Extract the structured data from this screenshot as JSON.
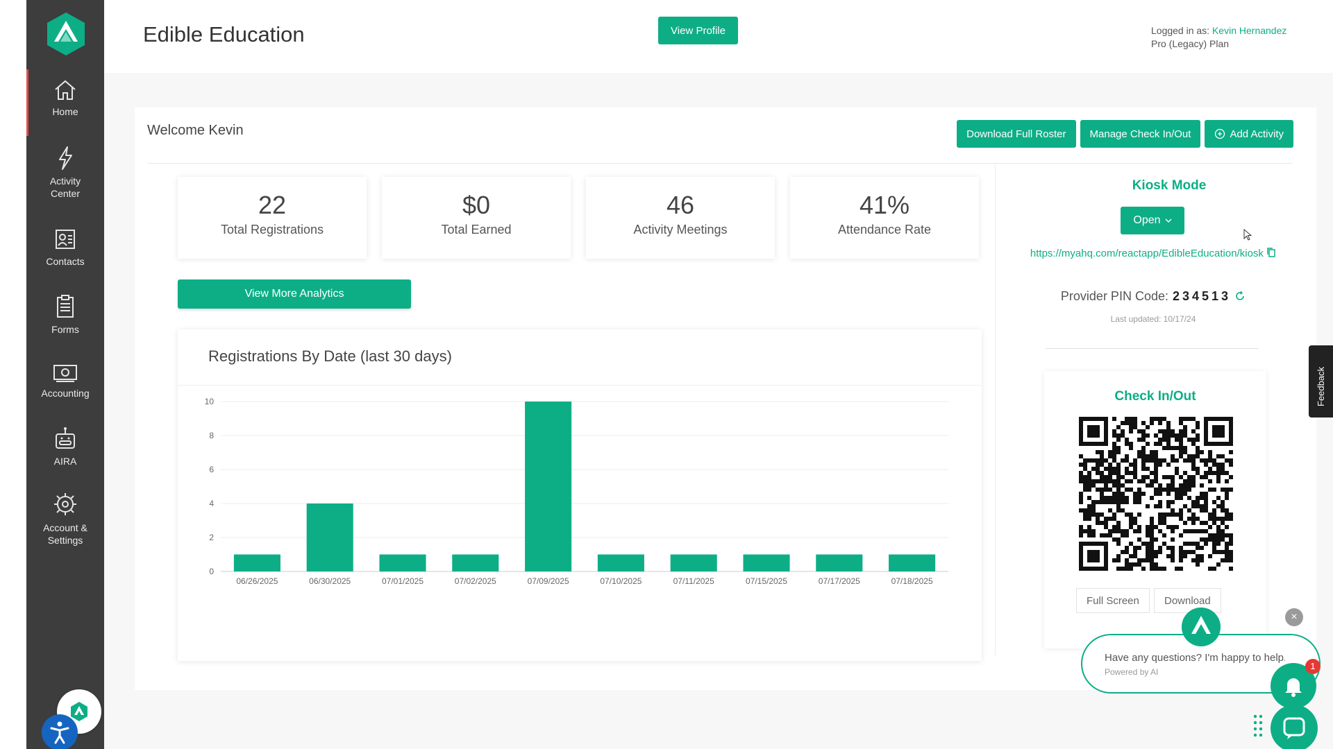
{
  "app": {
    "title": "Edible Education",
    "view_profile_label": "View Profile",
    "logged_in_prefix": "Logged in as:",
    "user_name": "Kevin Hernandez",
    "plan": "Pro (Legacy) Plan"
  },
  "colors": {
    "brand": "#0dae86",
    "sidebar": "#3d3d3d",
    "active_marker": "#e84a4a"
  },
  "sidebar": {
    "items": [
      {
        "label": "Home",
        "icon": "home-icon"
      },
      {
        "label": "Activity\nCenter",
        "icon": "lightning-icon"
      },
      {
        "label": "Contacts",
        "icon": "contacts-icon"
      },
      {
        "label": "Forms",
        "icon": "clipboard-icon"
      },
      {
        "label": "Accounting",
        "icon": "money-icon"
      },
      {
        "label": "AIRA",
        "icon": "robot-icon"
      },
      {
        "label": "Account &\nSettings",
        "icon": "gear-icon"
      }
    ]
  },
  "dashboard": {
    "welcome": "Welcome Kevin",
    "actions": {
      "download_roster": "Download Full Roster",
      "manage_checkin": "Manage Check In/Out",
      "add_activity": "Add Activity"
    },
    "stats": [
      {
        "value": "22",
        "label": "Total Registrations"
      },
      {
        "value": "$0",
        "label": "Total Earned"
      },
      {
        "value": "46",
        "label": "Activity Meetings"
      },
      {
        "value": "41%",
        "label": "Attendance Rate"
      }
    ],
    "analytics_button": "View More Analytics"
  },
  "chart_data": {
    "type": "bar",
    "title": "Registrations By Date (last 30 days)",
    "categories": [
      "06/26/2025",
      "06/30/2025",
      "07/01/2025",
      "07/02/2025",
      "07/09/2025",
      "07/10/2025",
      "07/11/2025",
      "07/15/2025",
      "07/17/2025",
      "07/18/2025"
    ],
    "values": [
      1,
      4,
      1,
      1,
      10,
      1,
      1,
      1,
      1,
      1
    ],
    "ylim": [
      0,
      10
    ],
    "yticks": [
      0,
      2,
      4,
      6,
      8,
      10
    ],
    "xlabel": "",
    "ylabel": "",
    "grid": true,
    "color": "#0dae86"
  },
  "kiosk": {
    "title": "Kiosk Mode",
    "open_label": "Open",
    "url": "https://myahq.com/reactapp/EdibleEducation/kiosk",
    "pin_label": "Provider PIN Code:",
    "pin": "234513",
    "last_updated": "Last updated: 10/17/24"
  },
  "checkin": {
    "title": "Check In/Out",
    "full_screen": "Full Screen",
    "download": "Download"
  },
  "feedback_label": "Feedback",
  "chat": {
    "message": "Have any questions? I'm happy to help.",
    "powered": "Powered by AI",
    "badge": "1",
    "close": "×"
  }
}
